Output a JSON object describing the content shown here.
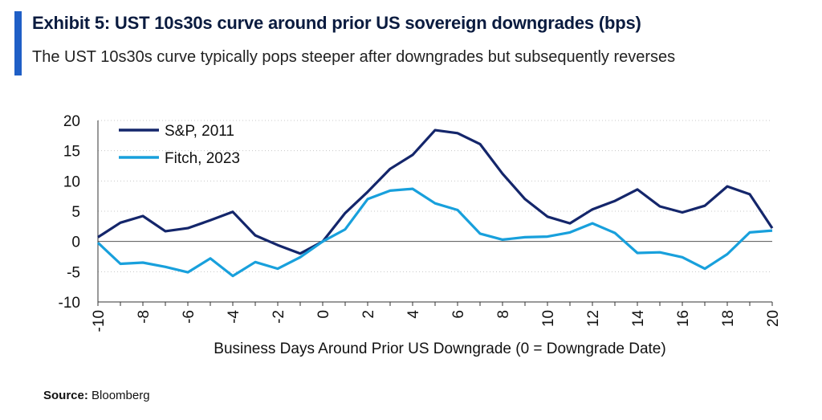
{
  "title": "Exhibit 5: UST 10s30s curve around prior US sovereign downgrades (bps)",
  "subtitle": "The UST 10s30s curve typically pops steeper after downgrades but subsequently reverses",
  "source": {
    "label": "Source:",
    "text": "Bloomberg"
  },
  "colors": {
    "accent": "#1f5fc6",
    "sp": "#14266b",
    "fitch": "#18a0dc"
  },
  "chart_data": {
    "type": "line",
    "xlabel": "Business Days Around Prior US Downgrade (0 = Downgrade Date)",
    "ylabel": "",
    "xlim": [
      -10,
      20
    ],
    "ylim": [
      -10,
      20
    ],
    "x": [
      -10,
      -9,
      -8,
      -7,
      -6,
      -5,
      -4,
      -3,
      -2,
      -1,
      0,
      1,
      2,
      3,
      4,
      5,
      6,
      7,
      8,
      9,
      10,
      11,
      12,
      13,
      14,
      15,
      16,
      17,
      18,
      19,
      20
    ],
    "x_ticks": [
      "-10",
      "-8",
      "-6",
      "-4",
      "-2",
      "0",
      "2",
      "4",
      "6",
      "8",
      "10",
      "12",
      "14",
      "16",
      "18",
      "20"
    ],
    "y_ticks": [
      "20",
      "15",
      "10",
      "5",
      "0",
      "-5",
      "-10"
    ],
    "grid": "horizontal dotted",
    "legend": "top-left",
    "series": [
      {
        "name": "S&P, 2011",
        "color": "#14266b",
        "values": [
          0.7,
          3.1,
          4.2,
          1.7,
          2.2,
          3.5,
          4.9,
          1.0,
          -0.6,
          -2.0,
          0.0,
          4.7,
          8.2,
          12.0,
          14.3,
          18.4,
          17.9,
          16.1,
          11.2,
          7.0,
          4.1,
          3.0,
          5.3,
          6.7,
          8.6,
          5.8,
          4.8,
          5.9,
          9.1,
          7.8,
          2.2
        ]
      },
      {
        "name": "Fitch, 2023",
        "color": "#18a0dc",
        "values": [
          -0.2,
          -3.7,
          -3.5,
          -4.2,
          -5.1,
          -2.8,
          -5.7,
          -3.4,
          -4.5,
          -2.6,
          0.0,
          2.0,
          7.0,
          8.4,
          8.7,
          6.3,
          5.2,
          1.3,
          0.3,
          0.7,
          0.8,
          1.5,
          3.0,
          1.4,
          -1.9,
          -1.8,
          -2.6,
          -4.5,
          -2.1,
          1.5,
          1.8
        ]
      }
    ]
  }
}
